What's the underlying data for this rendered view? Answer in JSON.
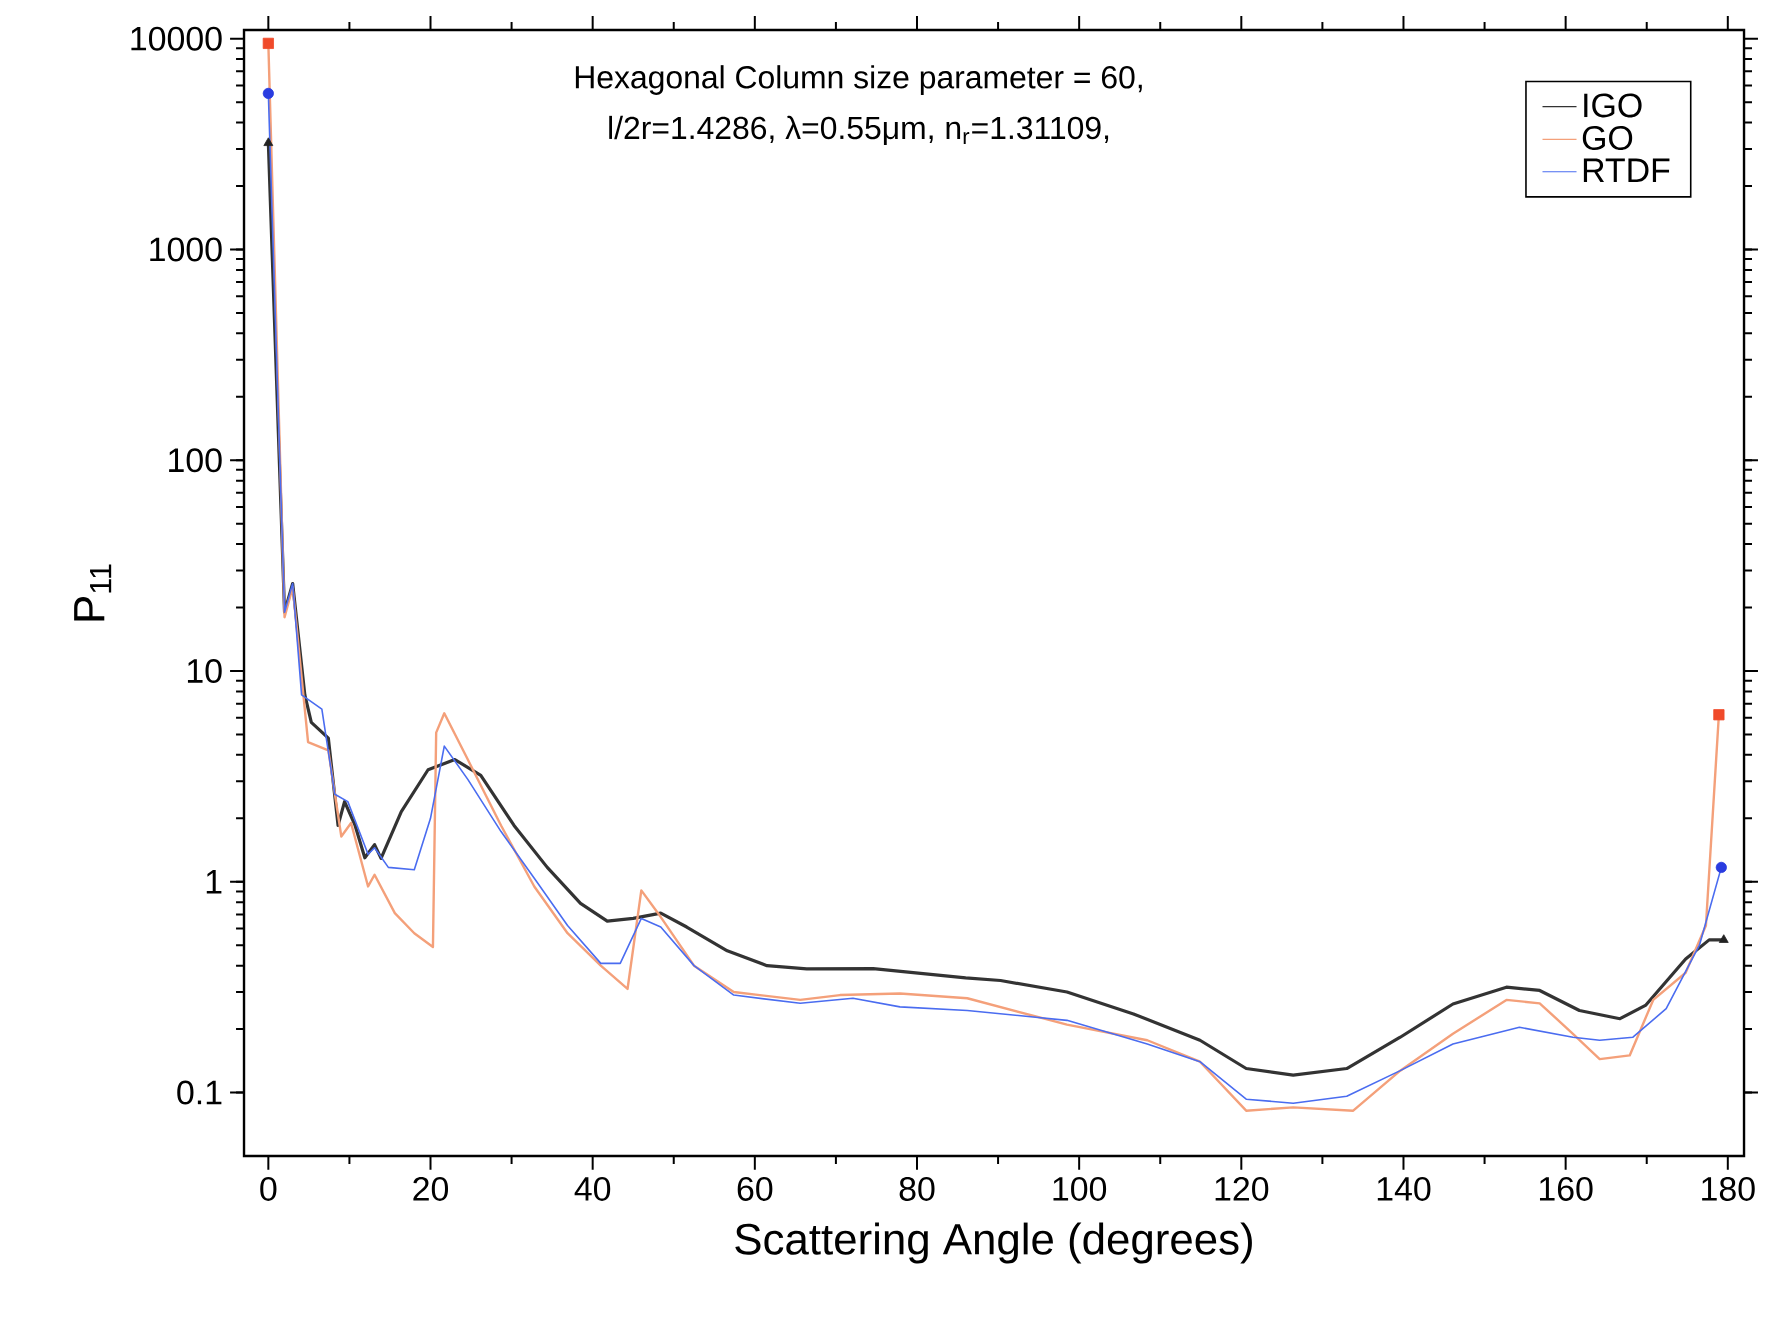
{
  "chart_data": {
    "type": "line",
    "xlabel": "Scattering Angle (degrees)",
    "ylabel": "P$_{11}$",
    "annotations": [
      "Hexagonal Column size parameter = 60,",
      "l/2r=1.4286, λ=0.55μm, n$_{r}$=1.31109,"
    ],
    "xlim": [
      -3,
      182
    ],
    "xticks": [
      0,
      20,
      40,
      60,
      80,
      100,
      120,
      140,
      160,
      180
    ],
    "ylim": [
      0.05,
      11000
    ],
    "yticks": [
      0.1,
      1,
      10,
      100,
      1000,
      10000
    ],
    "log": "y",
    "legend": "top right",
    "grid": false,
    "series": [
      {
        "name": "IGO",
        "color": "#333333",
        "x": [
          0,
          2,
          3,
          4.5,
          5.3,
          7.4,
          8.6,
          9.4,
          10.7,
          11.9,
          13.1,
          13.9,
          16.4,
          19.7,
          23,
          26.2,
          30.3,
          34.4,
          38.5,
          41.8,
          45,
          48.4,
          51.6,
          56.6,
          61.5,
          66.4,
          74.6,
          86,
          90.3,
          98.5,
          106.7,
          114.9,
          120.6,
          126.4,
          133,
          139.6,
          146.1,
          152.7,
          156.8,
          161.7,
          166.7,
          169.9,
          174.8,
          177.7,
          179.5
        ],
        "values": [
          3200,
          19,
          26,
          7.7,
          5.7,
          4.8,
          1.85,
          2.4,
          1.85,
          1.3,
          1.5,
          1.29,
          2.15,
          3.4,
          3.8,
          3.2,
          1.85,
          1.17,
          0.79,
          0.65,
          0.67,
          0.71,
          0.61,
          0.47,
          0.4,
          0.386,
          0.387,
          0.35,
          0.34,
          0.3,
          0.236,
          0.177,
          0.13,
          0.121,
          0.13,
          0.183,
          0.263,
          0.316,
          0.305,
          0.245,
          0.224,
          0.26,
          0.43,
          0.53,
          0.53
        ]
      },
      {
        "name": "GO",
        "color": "#f4a07a",
        "x": [
          0,
          2,
          3,
          4.9,
          7.4,
          9,
          10.2,
          12.3,
          13.1,
          15.6,
          18,
          20.3,
          20.7,
          21.7,
          24.6,
          28.7,
          32.8,
          36.9,
          41,
          44.3,
          46,
          48.4,
          52.5,
          57.4,
          65.6,
          70.5,
          77.9,
          86.2,
          98.5,
          108.4,
          114.9,
          120.6,
          126.4,
          133.8,
          139.6,
          146.1,
          152.7,
          156.8,
          160.9,
          164.2,
          167.9,
          170.8,
          174.8,
          177.3,
          178.9
        ],
        "values": [
          9500,
          18,
          25,
          4.6,
          4.2,
          1.64,
          1.9,
          0.95,
          1.08,
          0.71,
          0.57,
          0.49,
          5.1,
          6.3,
          3.8,
          1.85,
          0.95,
          0.57,
          0.4,
          0.31,
          0.91,
          0.68,
          0.4,
          0.3,
          0.275,
          0.29,
          0.295,
          0.28,
          0.21,
          0.177,
          0.14,
          0.082,
          0.085,
          0.082,
          0.127,
          0.19,
          0.275,
          0.265,
          0.19,
          0.144,
          0.15,
          0.275,
          0.37,
          0.62,
          6.2
        ]
      },
      {
        "name": "RTDF",
        "color": "#4a6cf0",
        "x": [
          0,
          2,
          3,
          4.1,
          6.6,
          8.2,
          9.8,
          12.3,
          13.1,
          14.8,
          18,
          20,
          21.7,
          24.6,
          28.7,
          32.8,
          36.9,
          41,
          43.4,
          46,
          48.4,
          52.5,
          57.4,
          65.6,
          72.1,
          77.9,
          86.2,
          98.5,
          108.4,
          114.9,
          120.6,
          126.4,
          133,
          139.6,
          146.1,
          154.3,
          160.9,
          164.2,
          168.3,
          172.4,
          176.5,
          179.2
        ],
        "values": [
          5500,
          19,
          26,
          7.7,
          6.6,
          2.6,
          2.4,
          1.35,
          1.45,
          1.17,
          1.14,
          2,
          4.4,
          3.06,
          1.73,
          1.04,
          0.62,
          0.41,
          0.41,
          0.67,
          0.61,
          0.4,
          0.29,
          0.265,
          0.28,
          0.255,
          0.245,
          0.22,
          0.17,
          0.14,
          0.093,
          0.089,
          0.096,
          0.127,
          0.17,
          0.204,
          0.183,
          0.177,
          0.183,
          0.25,
          0.5,
          1.17
        ]
      },
      {
        "type": "scatter",
        "marker": "triangle",
        "color": "#222222",
        "x": [
          0,
          179.5
        ],
        "values": [
          3200,
          0.53
        ]
      },
      {
        "type": "scatter",
        "marker": "square",
        "color": "#f04a2a",
        "x": [
          0,
          178.9
        ],
        "values": [
          9500,
          6.2
        ]
      },
      {
        "type": "scatter",
        "marker": "circle",
        "color": "#2a3ce0",
        "x": [
          0,
          179.2
        ],
        "values": [
          5500,
          1.17
        ]
      }
    ]
  }
}
